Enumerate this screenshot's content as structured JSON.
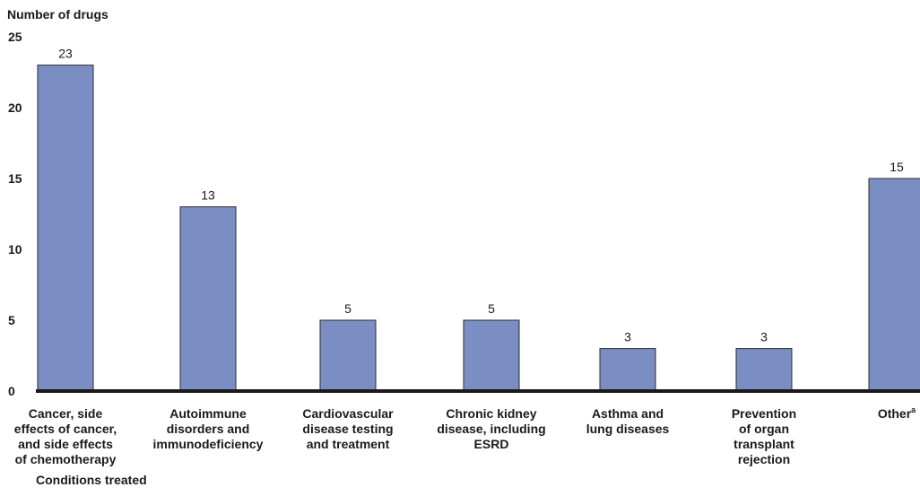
{
  "chart_data": {
    "type": "bar",
    "title": "",
    "ylabel": "Number of drugs",
    "xlabel": "Conditions treated",
    "ylim": [
      0,
      25
    ],
    "yticks": [
      0,
      5,
      10,
      15,
      20,
      25
    ],
    "grid": false,
    "bar_color": "#7b8ec4",
    "categories": [
      "Cancer, side effects of cancer, and side effects of chemotherapy",
      "Autoimmune disorders and immunodeficiency",
      "Cardiovascular disease testing and treatment",
      "Chronic kidney disease, including ESRD",
      "Asthma and lung diseases",
      "Prevention of organ transplant rejection",
      "Other"
    ],
    "category_lines": [
      [
        "Cancer, side",
        "effects of cancer,",
        "and side effects",
        "of chemotherapy"
      ],
      [
        "Autoimmune",
        "disorders and",
        "immunodeficiency"
      ],
      [
        "Cardiovascular",
        "disease testing",
        "and treatment"
      ],
      [
        "Chronic kidney",
        "disease, including",
        "ESRD"
      ],
      [
        "Asthma and",
        "lung diseases"
      ],
      [
        "Prevention",
        "of organ",
        "transplant",
        "rejection"
      ],
      [
        "Other"
      ]
    ],
    "footnote_marks": [
      "",
      "",
      "",
      "",
      "",
      "",
      "a"
    ],
    "values": [
      23,
      13,
      5,
      5,
      3,
      3,
      15
    ]
  }
}
